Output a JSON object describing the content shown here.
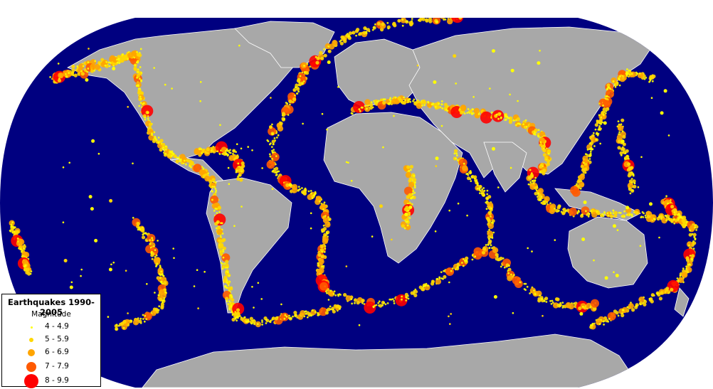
{
  "legend": {
    "title": "Earthquakes 1990-2005",
    "subtitle": "Magnitude",
    "classes": [
      {
        "label": "4 - 4.9",
        "color": "#FFFF00"
      },
      {
        "label": "5 - 5.9",
        "color": "#FFD700"
      },
      {
        "label": "6 - 6.9",
        "color": "#FFA500"
      },
      {
        "label": "7 - 7.9",
        "color": "#FF5A00"
      },
      {
        "label": "8 - 9.9",
        "color": "#FF0000"
      }
    ]
  },
  "colors": {
    "ocean": "#000080",
    "land": "#A8A8A8",
    "borders": "#FFFFFF",
    "page_background": "#FFFFFF"
  },
  "map": {
    "projection": "Robinson (world)",
    "features": "plate-boundary earthquake belts: Pacific Ring of Fire, Mid-Atlantic Ridge, Alpine-Himalayan belt, Indian Ocean ridges"
  }
}
